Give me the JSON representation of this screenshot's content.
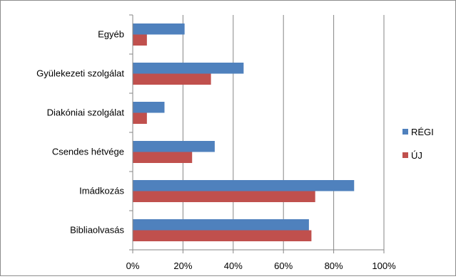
{
  "chart_data": {
    "type": "bar",
    "orientation": "horizontal",
    "categories": [
      "Egyéb",
      "Gyülekezeti szolgálat",
      "Diakóniai szolgálat",
      "Csendes hétvége",
      "Imádkozás",
      "Bibliaolvasás"
    ],
    "series": [
      {
        "name": "RÉGI",
        "color": "#4f81bd",
        "values": [
          20.5,
          44,
          12.5,
          32.5,
          88,
          70
        ]
      },
      {
        "name": "ÚJ",
        "color": "#c0504d",
        "values": [
          5.5,
          31,
          5.5,
          23.5,
          72.5,
          71
        ]
      }
    ],
    "xlim": [
      0,
      100
    ],
    "xticks": [
      "0%",
      "20%",
      "40%",
      "60%",
      "80%",
      "100%"
    ],
    "grid": "vertical",
    "legend_position": "right"
  }
}
